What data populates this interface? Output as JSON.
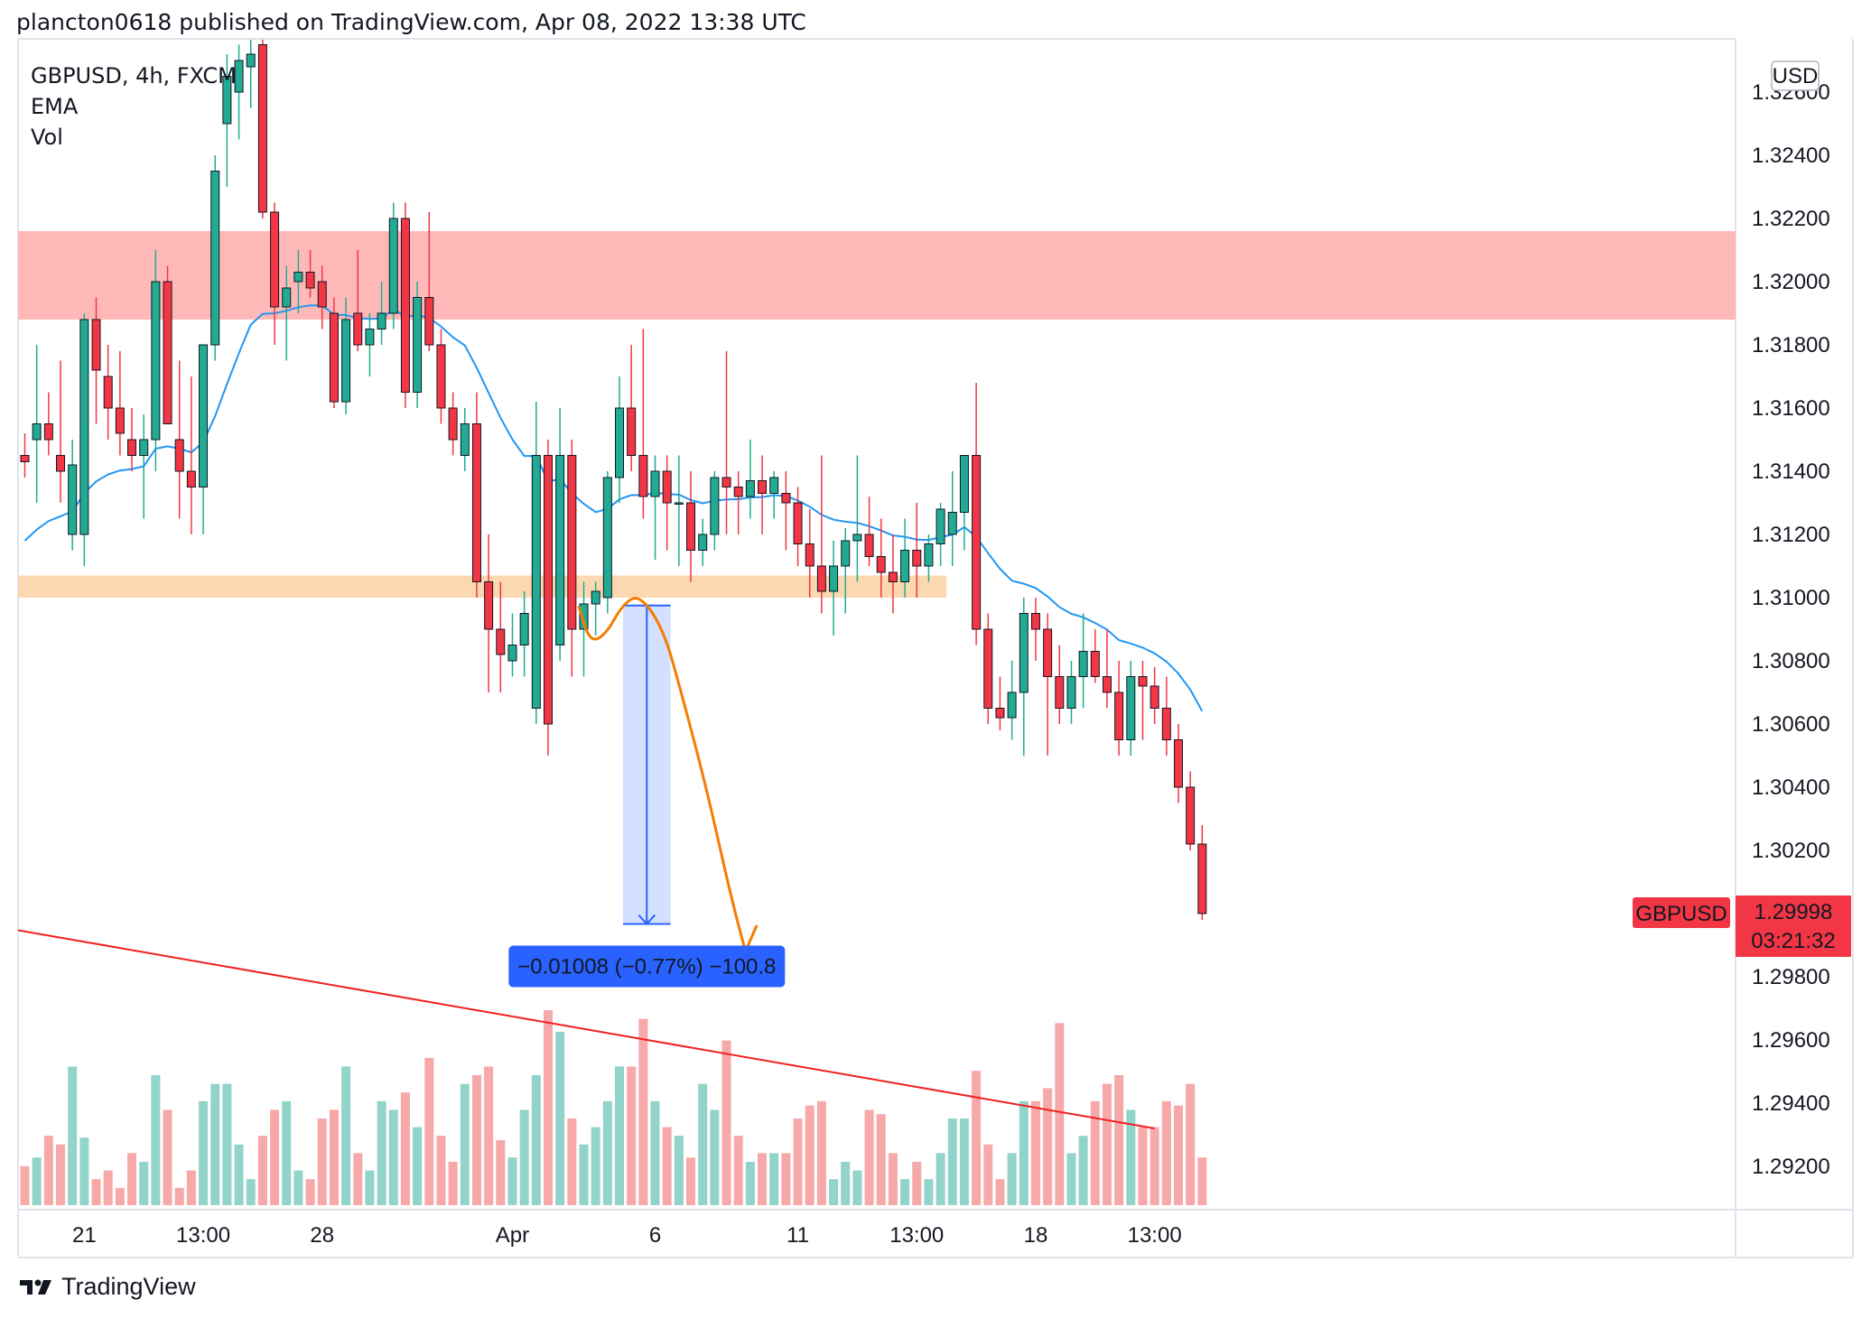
{
  "header": {
    "publish_line": "plancton0618 published on TradingView.com, Apr 08, 2022 13:38 UTC"
  },
  "legend": {
    "symbol_line": "GBPUSD, 4h, FXCM",
    "ema_label": "EMA",
    "vol_label": "Vol"
  },
  "currency_badge": "USD",
  "price_tag": {
    "symbol": "GBPUSD",
    "price": "1.29998",
    "countdown": "03:21:32",
    "color": "#f23645"
  },
  "measure": {
    "label": "−0.01008 (−0.77%) −100.8",
    "from": 1.30975,
    "to": 1.29967,
    "color": "#2962ff"
  },
  "footer": {
    "brand": "TradingView"
  },
  "colors": {
    "up": "#22ab94",
    "down": "#f23645",
    "ema": "#2196f3",
    "resistance_zone": "#ffb8b8",
    "support_zone": "#fcd8b0",
    "forecast_arrow": "#f57c00",
    "trendline": "#f21f1f",
    "vol_up": "#92d3ca",
    "vol_down": "#f7a8a8"
  },
  "chart_data": {
    "type": "candlestick",
    "symbol": "GBPUSD",
    "timeframe": "4h",
    "y_ticks": [
      "1.32600",
      "1.32400",
      "1.32200",
      "1.32000",
      "1.31800",
      "1.31600",
      "1.31400",
      "1.31200",
      "1.31000",
      "1.30800",
      "1.30600",
      "1.30400",
      "1.30200",
      "1.29800",
      "1.29600",
      "1.29400",
      "1.29200"
    ],
    "ylim": [
      1.2908,
      1.3271
    ],
    "x_ticks": [
      {
        "label": "21",
        "bar": 5
      },
      {
        "label": "13:00",
        "bar": 15
      },
      {
        "label": "28",
        "bar": 25
      },
      {
        "label": "Apr",
        "bar": 41
      },
      {
        "label": "6",
        "bar": 53
      },
      {
        "label": "11",
        "bar": 65
      },
      {
        "label": "13:00",
        "bar": 75
      },
      {
        "label": "18",
        "bar": 85
      },
      {
        "label": "13:00",
        "bar": 95
      }
    ],
    "zones": [
      {
        "name": "resistance",
        "from": 1.3188,
        "to": 1.3216,
        "start_bar": -1
      },
      {
        "name": "support",
        "from": 1.31,
        "to": 1.3107,
        "start_bar": -1,
        "end_bar": 77.5
      }
    ],
    "trendline": {
      "bar1": -1,
      "price1": 1.2995,
      "bar2": 95,
      "price2": 1.2932
    },
    "forecast_arrow": [
      [
        46.6,
        1.3097
      ],
      [
        47.5,
        1.3086
      ],
      [
        48.8,
        1.3088
      ],
      [
        50.3,
        1.3098
      ],
      [
        51.7,
        1.3101
      ],
      [
        53.7,
        1.309
      ],
      [
        55.2,
        1.307
      ],
      [
        57.3,
        1.304
      ],
      [
        59.4,
        1.3005
      ],
      [
        60.6,
        1.2988
      ]
    ],
    "candles": [
      {
        "o": 1.3145,
        "h": 1.3152,
        "l": 1.3138,
        "c": 1.3143,
        "v": 45
      },
      {
        "o": 1.315,
        "h": 1.318,
        "l": 1.313,
        "c": 1.3155,
        "v": 55
      },
      {
        "o": 1.3155,
        "h": 1.3165,
        "l": 1.3145,
        "c": 1.315,
        "v": 80
      },
      {
        "o": 1.3145,
        "h": 1.3175,
        "l": 1.313,
        "c": 1.314,
        "v": 70
      },
      {
        "o": 1.312,
        "h": 1.315,
        "l": 1.3115,
        "c": 1.3142,
        "v": 160
      },
      {
        "o": 1.312,
        "h": 1.319,
        "l": 1.311,
        "c": 1.3188,
        "v": 78
      },
      {
        "o": 1.3188,
        "h": 1.3195,
        "l": 1.3155,
        "c": 1.3172,
        "v": 30
      },
      {
        "o": 1.317,
        "h": 1.318,
        "l": 1.315,
        "c": 1.316,
        "v": 40
      },
      {
        "o": 1.316,
        "h": 1.3178,
        "l": 1.3145,
        "c": 1.3152,
        "v": 20
      },
      {
        "o": 1.315,
        "h": 1.316,
        "l": 1.314,
        "c": 1.3145,
        "v": 60
      },
      {
        "o": 1.3145,
        "h": 1.3158,
        "l": 1.3125,
        "c": 1.315,
        "v": 50
      },
      {
        "o": 1.315,
        "h": 1.321,
        "l": 1.314,
        "c": 1.32,
        "v": 150
      },
      {
        "o": 1.32,
        "h": 1.3205,
        "l": 1.3155,
        "c": 1.3155,
        "v": 110
      },
      {
        "o": 1.315,
        "h": 1.3175,
        "l": 1.3125,
        "c": 1.314,
        "v": 20
      },
      {
        "o": 1.314,
        "h": 1.317,
        "l": 1.312,
        "c": 1.3135,
        "v": 40
      },
      {
        "o": 1.3135,
        "h": 1.318,
        "l": 1.312,
        "c": 1.318,
        "v": 120
      },
      {
        "o": 1.318,
        "h": 1.324,
        "l": 1.3175,
        "c": 1.3235,
        "v": 140
      },
      {
        "o": 1.325,
        "h": 1.3272,
        "l": 1.323,
        "c": 1.3265,
        "v": 140
      },
      {
        "o": 1.326,
        "h": 1.3275,
        "l": 1.3245,
        "c": 1.327,
        "v": 70
      },
      {
        "o": 1.3268,
        "h": 1.3278,
        "l": 1.3255,
        "c": 1.3272,
        "v": 30
      },
      {
        "o": 1.3275,
        "h": 1.328,
        "l": 1.322,
        "c": 1.3222,
        "v": 80
      },
      {
        "o": 1.3222,
        "h": 1.3225,
        "l": 1.318,
        "c": 1.3192,
        "v": 110
      },
      {
        "o": 1.3192,
        "h": 1.3205,
        "l": 1.3175,
        "c": 1.3198,
        "v": 120
      },
      {
        "o": 1.32,
        "h": 1.321,
        "l": 1.319,
        "c": 1.3203,
        "v": 40
      },
      {
        "o": 1.3203,
        "h": 1.321,
        "l": 1.3195,
        "c": 1.3198,
        "v": 30
      },
      {
        "o": 1.32,
        "h": 1.3205,
        "l": 1.3185,
        "c": 1.3192,
        "v": 100
      },
      {
        "o": 1.319,
        "h": 1.3195,
        "l": 1.316,
        "c": 1.3162,
        "v": 110
      },
      {
        "o": 1.3162,
        "h": 1.3195,
        "l": 1.3158,
        "c": 1.3188,
        "v": 160
      },
      {
        "o": 1.319,
        "h": 1.321,
        "l": 1.3178,
        "c": 1.318,
        "v": 60
      },
      {
        "o": 1.318,
        "h": 1.319,
        "l": 1.317,
        "c": 1.3185,
        "v": 40
      },
      {
        "o": 1.3185,
        "h": 1.32,
        "l": 1.318,
        "c": 1.319,
        "v": 120
      },
      {
        "o": 1.319,
        "h": 1.3225,
        "l": 1.3185,
        "c": 1.322,
        "v": 110
      },
      {
        "o": 1.322,
        "h": 1.3225,
        "l": 1.316,
        "c": 1.3165,
        "v": 130
      },
      {
        "o": 1.3165,
        "h": 1.32,
        "l": 1.316,
        "c": 1.3195,
        "v": 90
      },
      {
        "o": 1.3195,
        "h": 1.3222,
        "l": 1.3178,
        "c": 1.318,
        "v": 170
      },
      {
        "o": 1.318,
        "h": 1.3185,
        "l": 1.3155,
        "c": 1.316,
        "v": 80
      },
      {
        "o": 1.316,
        "h": 1.3165,
        "l": 1.3145,
        "c": 1.315,
        "v": 50
      },
      {
        "o": 1.3145,
        "h": 1.316,
        "l": 1.314,
        "c": 1.3155,
        "v": 140
      },
      {
        "o": 1.3155,
        "h": 1.3165,
        "l": 1.31,
        "c": 1.3105,
        "v": 150
      },
      {
        "o": 1.3105,
        "h": 1.312,
        "l": 1.307,
        "c": 1.309,
        "v": 160
      },
      {
        "o": 1.309,
        "h": 1.3105,
        "l": 1.307,
        "c": 1.3082,
        "v": 75
      },
      {
        "o": 1.308,
        "h": 1.3095,
        "l": 1.3075,
        "c": 1.3085,
        "v": 55
      },
      {
        "o": 1.3085,
        "h": 1.3102,
        "l": 1.3075,
        "c": 1.3095,
        "v": 110
      },
      {
        "o": 1.3065,
        "h": 1.3162,
        "l": 1.306,
        "c": 1.3145,
        "v": 150
      },
      {
        "o": 1.3145,
        "h": 1.315,
        "l": 1.305,
        "c": 1.306,
        "v": 225
      },
      {
        "o": 1.3085,
        "h": 1.316,
        "l": 1.308,
        "c": 1.3145,
        "v": 200
      },
      {
        "o": 1.3145,
        "h": 1.315,
        "l": 1.3075,
        "c": 1.309,
        "v": 100
      },
      {
        "o": 1.309,
        "h": 1.3105,
        "l": 1.3075,
        "c": 1.3098,
        "v": 70
      },
      {
        "o": 1.3098,
        "h": 1.3105,
        "l": 1.3088,
        "c": 1.3102,
        "v": 90
      },
      {
        "o": 1.31,
        "h": 1.314,
        "l": 1.3095,
        "c": 1.3138,
        "v": 120
      },
      {
        "o": 1.3138,
        "h": 1.317,
        "l": 1.313,
        "c": 1.316,
        "v": 160
      },
      {
        "o": 1.316,
        "h": 1.318,
        "l": 1.314,
        "c": 1.3145,
        "v": 160
      },
      {
        "o": 1.3145,
        "h": 1.3185,
        "l": 1.3125,
        "c": 1.3132,
        "v": 215
      },
      {
        "o": 1.3132,
        "h": 1.3145,
        "l": 1.3112,
        "c": 1.314,
        "v": 120
      },
      {
        "o": 1.314,
        "h": 1.3145,
        "l": 1.3115,
        "c": 1.313,
        "v": 90
      },
      {
        "o": 1.313,
        "h": 1.3145,
        "l": 1.311,
        "c": 1.313,
        "v": 80
      },
      {
        "o": 1.313,
        "h": 1.314,
        "l": 1.3105,
        "c": 1.3115,
        "v": 55
      },
      {
        "o": 1.3115,
        "h": 1.3125,
        "l": 1.311,
        "c": 1.312,
        "v": 140
      },
      {
        "o": 1.312,
        "h": 1.314,
        "l": 1.3115,
        "c": 1.3138,
        "v": 110
      },
      {
        "o": 1.3138,
        "h": 1.3178,
        "l": 1.312,
        "c": 1.3135,
        "v": 190
      },
      {
        "o": 1.3135,
        "h": 1.314,
        "l": 1.312,
        "c": 1.3132,
        "v": 80
      },
      {
        "o": 1.3132,
        "h": 1.315,
        "l": 1.3125,
        "c": 1.3137,
        "v": 50
      },
      {
        "o": 1.3137,
        "h": 1.3145,
        "l": 1.312,
        "c": 1.3133,
        "v": 60
      },
      {
        "o": 1.3133,
        "h": 1.314,
        "l": 1.3125,
        "c": 1.3138,
        "v": 60
      },
      {
        "o": 1.3133,
        "h": 1.314,
        "l": 1.3115,
        "c": 1.313,
        "v": 60
      },
      {
        "o": 1.313,
        "h": 1.3135,
        "l": 1.311,
        "c": 1.3117,
        "v": 100
      },
      {
        "o": 1.3117,
        "h": 1.3128,
        "l": 1.31,
        "c": 1.311,
        "v": 115
      },
      {
        "o": 1.311,
        "h": 1.3145,
        "l": 1.3095,
        "c": 1.3102,
        "v": 120
      },
      {
        "o": 1.3102,
        "h": 1.3118,
        "l": 1.3088,
        "c": 1.311,
        "v": 30
      },
      {
        "o": 1.311,
        "h": 1.3122,
        "l": 1.3095,
        "c": 1.3118,
        "v": 50
      },
      {
        "o": 1.3118,
        "h": 1.3145,
        "l": 1.3105,
        "c": 1.312,
        "v": 40
      },
      {
        "o": 1.312,
        "h": 1.3132,
        "l": 1.311,
        "c": 1.3113,
        "v": 110
      },
      {
        "o": 1.3113,
        "h": 1.3125,
        "l": 1.31,
        "c": 1.3108,
        "v": 105
      },
      {
        "o": 1.3108,
        "h": 1.312,
        "l": 1.3095,
        "c": 1.3105,
        "v": 60
      },
      {
        "o": 1.3105,
        "h": 1.3125,
        "l": 1.31,
        "c": 1.3115,
        "v": 30
      },
      {
        "o": 1.3115,
        "h": 1.313,
        "l": 1.31,
        "c": 1.311,
        "v": 50
      },
      {
        "o": 1.311,
        "h": 1.312,
        "l": 1.3105,
        "c": 1.3117,
        "v": 30
      },
      {
        "o": 1.3117,
        "h": 1.313,
        "l": 1.311,
        "c": 1.3128,
        "v": 60
      },
      {
        "o": 1.312,
        "h": 1.314,
        "l": 1.311,
        "c": 1.3127,
        "v": 100
      },
      {
        "o": 1.3127,
        "h": 1.3145,
        "l": 1.3115,
        "c": 1.3145,
        "v": 100
      },
      {
        "o": 1.3145,
        "h": 1.3168,
        "l": 1.3085,
        "c": 1.309,
        "v": 155
      },
      {
        "o": 1.309,
        "h": 1.3095,
        "l": 1.306,
        "c": 1.3065,
        "v": 70
      },
      {
        "o": 1.3065,
        "h": 1.3075,
        "l": 1.3058,
        "c": 1.3062,
        "v": 30
      },
      {
        "o": 1.3062,
        "h": 1.308,
        "l": 1.3055,
        "c": 1.307,
        "v": 60
      },
      {
        "o": 1.307,
        "h": 1.31,
        "l": 1.305,
        "c": 1.3095,
        "v": 120
      },
      {
        "o": 1.3095,
        "h": 1.31,
        "l": 1.308,
        "c": 1.309,
        "v": 120
      },
      {
        "o": 1.309,
        "h": 1.3095,
        "l": 1.305,
        "c": 1.3075,
        "v": 135
      },
      {
        "o": 1.3075,
        "h": 1.3085,
        "l": 1.306,
        "c": 1.3065,
        "v": 210
      },
      {
        "o": 1.3065,
        "h": 1.308,
        "l": 1.306,
        "c": 1.3075,
        "v": 60
      },
      {
        "o": 1.3075,
        "h": 1.3095,
        "l": 1.3065,
        "c": 1.3083,
        "v": 80
      },
      {
        "o": 1.3083,
        "h": 1.309,
        "l": 1.3073,
        "c": 1.3075,
        "v": 120
      },
      {
        "o": 1.3075,
        "h": 1.309,
        "l": 1.3065,
        "c": 1.307,
        "v": 140
      },
      {
        "o": 1.307,
        "h": 1.308,
        "l": 1.305,
        "c": 1.3055,
        "v": 150
      },
      {
        "o": 1.3055,
        "h": 1.308,
        "l": 1.305,
        "c": 1.3075,
        "v": 110
      },
      {
        "o": 1.3075,
        "h": 1.308,
        "l": 1.3055,
        "c": 1.3072,
        "v": 90
      },
      {
        "o": 1.3072,
        "h": 1.3078,
        "l": 1.306,
        "c": 1.3065,
        "v": 90
      },
      {
        "o": 1.3065,
        "h": 1.3075,
        "l": 1.305,
        "c": 1.3055,
        "v": 120
      },
      {
        "o": 1.3055,
        "h": 1.306,
        "l": 1.3035,
        "c": 1.304,
        "v": 115
      },
      {
        "o": 1.304,
        "h": 1.3045,
        "l": 1.302,
        "c": 1.3022,
        "v": 140
      },
      {
        "o": 1.3022,
        "h": 1.3028,
        "l": 1.2998,
        "c": 1.3,
        "v": 55
      }
    ]
  }
}
